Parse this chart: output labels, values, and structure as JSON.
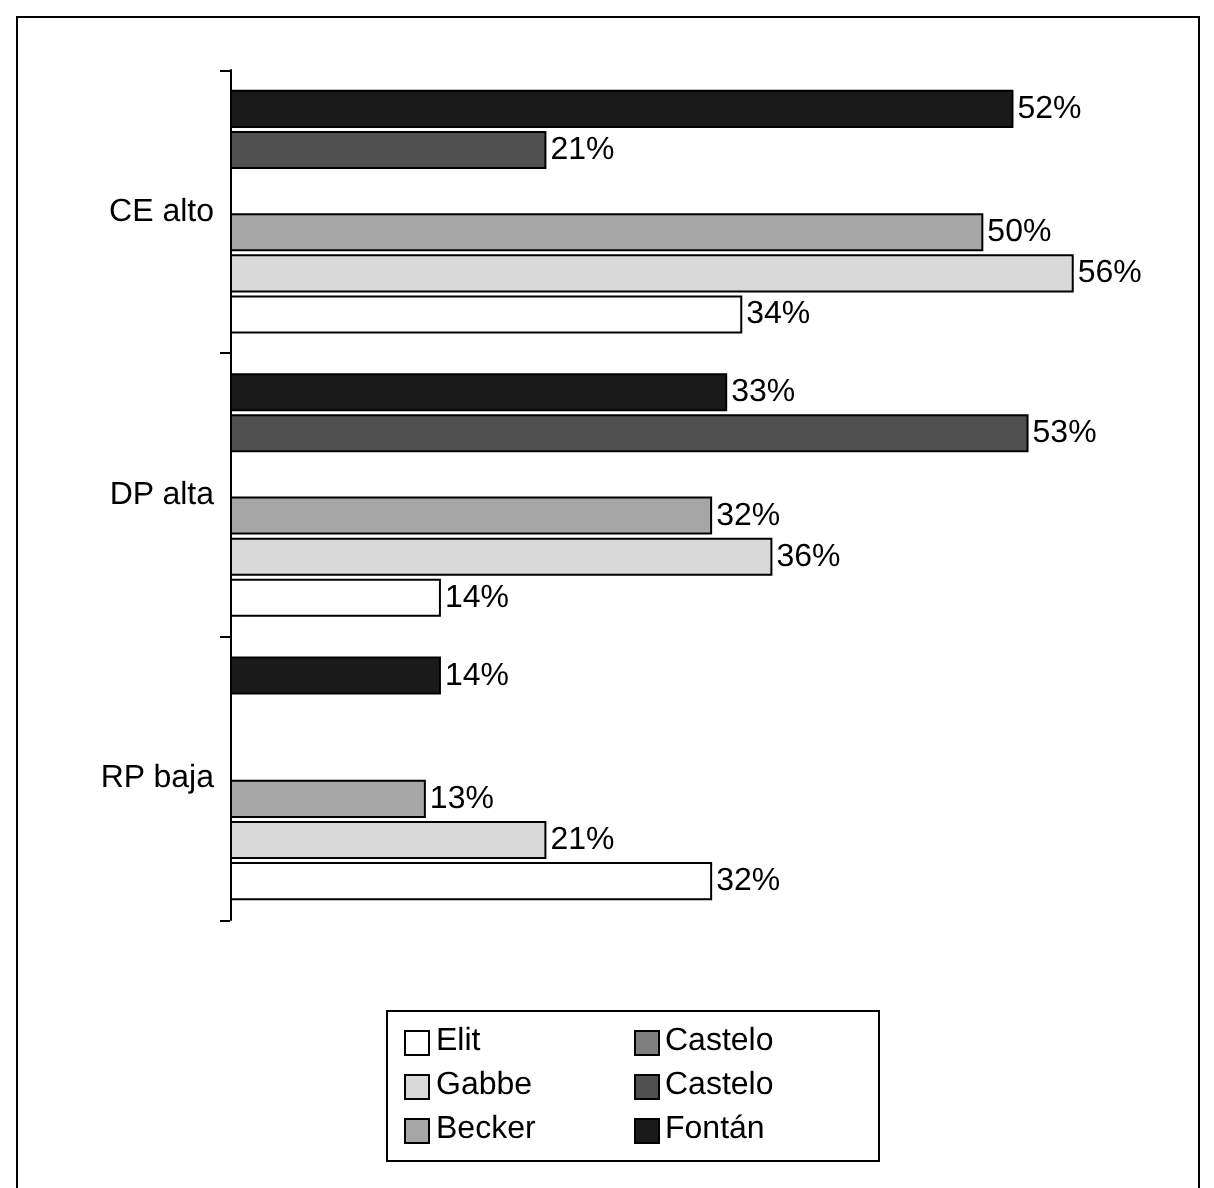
{
  "chart_data": {
    "type": "bar",
    "orientation": "horizontal",
    "categories": [
      "CE alto",
      "DP alta",
      "RP baja"
    ],
    "series": [
      {
        "name": "Elit",
        "color": "#ffffff",
        "values": [
          34,
          14,
          32
        ],
        "value_labels": [
          "34%",
          "14%",
          "32%"
        ]
      },
      {
        "name": "Gabbe",
        "color": "#d9d9d9",
        "values": [
          56,
          36,
          21
        ],
        "value_labels": [
          "56%",
          "36%",
          "21%"
        ]
      },
      {
        "name": "Becker",
        "color": "#a6a6a6",
        "values": [
          50,
          32,
          13
        ],
        "value_labels": [
          "50%",
          "32%",
          "13%"
        ]
      },
      {
        "name": "Castelo",
        "color": "#7f7f7f",
        "values": [
          null,
          null,
          null
        ],
        "value_labels": [
          null,
          null,
          null
        ]
      },
      {
        "name": "Castelo",
        "color": "#505050",
        "values": [
          21,
          53,
          null
        ],
        "value_labels": [
          "21%",
          "53%",
          null
        ]
      },
      {
        "name": "Fontán",
        "color": "#1a1a1a",
        "values": [
          52,
          33,
          14
        ],
        "value_labels": [
          "52%",
          "33%",
          "14%"
        ]
      }
    ],
    "legend": "bottom"
  }
}
